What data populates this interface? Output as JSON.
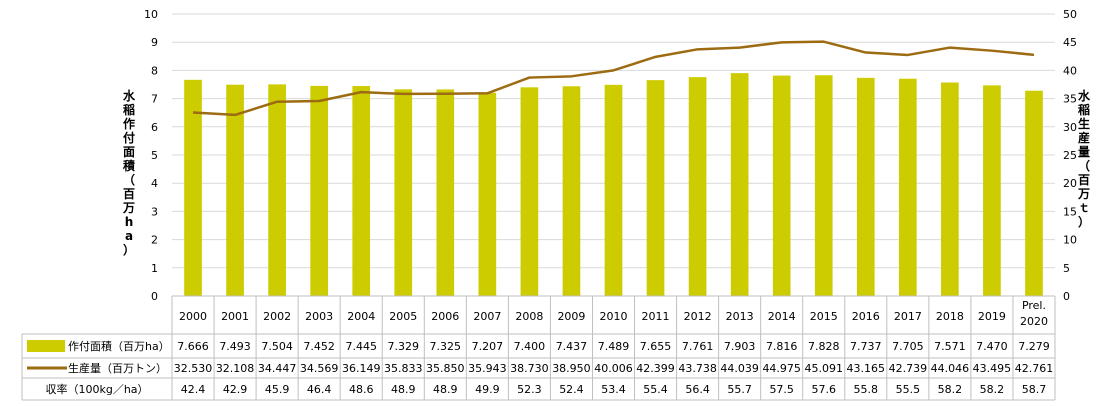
{
  "chart_data": {
    "type": "bar+line",
    "title": "",
    "categories": [
      "2000",
      "2001",
      "2002",
      "2003",
      "2004",
      "2005",
      "2006",
      "2007",
      "2008",
      "2009",
      "2010",
      "2011",
      "2012",
      "2013",
      "2014",
      "2015",
      "2016",
      "2017",
      "2018",
      "2019",
      "Prel. 2020"
    ],
    "series": [
      {
        "name": "作付面積（百万ha）",
        "kind": "bar",
        "axis": "left",
        "color": "#cccc00",
        "values": [
          7.666,
          7.493,
          7.504,
          7.452,
          7.445,
          7.329,
          7.325,
          7.207,
          7.4,
          7.437,
          7.489,
          7.655,
          7.761,
          7.903,
          7.816,
          7.828,
          7.737,
          7.705,
          7.571,
          7.47,
          7.279
        ],
        "labels": [
          "7.666",
          "7.493",
          "7.504",
          "7.452",
          "7.445",
          "7.329",
          "7.325",
          "7.207",
          "7.400",
          "7.437",
          "7.489",
          "7.655",
          "7.761",
          "7.903",
          "7.816",
          "7.828",
          "7.737",
          "7.705",
          "7.571",
          "7.470",
          "7.279"
        ]
      },
      {
        "name": "生産量（百万トン）",
        "kind": "line",
        "axis": "right",
        "color": "#9c6b12",
        "values": [
          32.53,
          32.108,
          34.447,
          34.569,
          36.149,
          35.833,
          35.85,
          35.943,
          38.73,
          38.95,
          40.006,
          42.399,
          43.738,
          44.039,
          44.975,
          45.091,
          43.165,
          42.739,
          44.046,
          43.495,
          42.761
        ],
        "labels": [
          "32.530",
          "32.108",
          "34.447",
          "34.569",
          "36.149",
          "35.833",
          "35.850",
          "35.943",
          "38.730",
          "38.950",
          "40.006",
          "42.399",
          "43.738",
          "44.039",
          "44.975",
          "45.091",
          "43.165",
          "42.739",
          "44.046",
          "43.495",
          "42.761"
        ]
      }
    ],
    "table_rows": [
      {
        "label": "収率（100kg／ha）",
        "values": [
          "42.4",
          "42.9",
          "45.9",
          "46.4",
          "48.6",
          "48.9",
          "48.9",
          "49.9",
          "52.3",
          "52.4",
          "53.4",
          "55.4",
          "56.4",
          "55.7",
          "57.5",
          "57.6",
          "55.8",
          "55.5",
          "58.2",
          "58.2",
          "58.7"
        ]
      }
    ],
    "ylabel_left": "水稲作付面積（百万ha）",
    "ylabel_right": "水稲生産量（百万ｔ）",
    "ylim_left": [
      0,
      10
    ],
    "ylim_right": [
      0,
      50
    ],
    "yticks_left": [
      "0",
      "1",
      "2",
      "3",
      "4",
      "5",
      "6",
      "7",
      "8",
      "9",
      "10"
    ],
    "yticks_right": [
      "0",
      "5",
      "10",
      "15",
      "20",
      "25",
      "30",
      "35",
      "40",
      "45",
      "50"
    ],
    "grid": true
  }
}
